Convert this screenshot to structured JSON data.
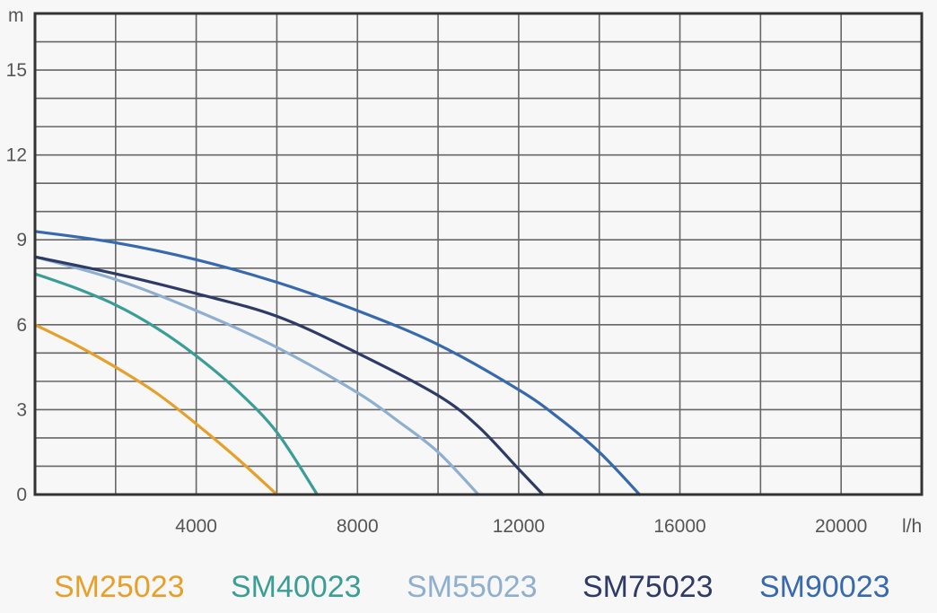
{
  "chart_data": {
    "type": "line",
    "xlabel": "l/h",
    "ylabel": "m",
    "xlim": [
      0,
      22000
    ],
    "ylim": [
      0,
      17
    ],
    "xticks": [
      4000,
      8000,
      12000,
      16000,
      20000
    ],
    "xtick_labels": [
      "4000",
      "8000",
      "12000",
      "16000",
      "20000"
    ],
    "yticks": [
      0,
      3,
      6,
      9,
      12,
      15
    ],
    "ytick_labels": [
      "0",
      "3",
      "6",
      "9",
      "12",
      "15"
    ],
    "grid": true,
    "legend": "bottom",
    "series": [
      {
        "name": "SM25023",
        "color": "#e6a02a",
        "x": [
          0,
          1000,
          2000,
          3000,
          4000,
          5000,
          6000
        ],
        "y": [
          6.0,
          5.3,
          4.5,
          3.6,
          2.5,
          1.3,
          0
        ]
      },
      {
        "name": "SM40023",
        "color": "#3b9e96",
        "x": [
          0,
          1000,
          2000,
          3000,
          4000,
          5000,
          6000,
          7000
        ],
        "y": [
          7.8,
          7.3,
          6.7,
          5.9,
          4.9,
          3.7,
          2.2,
          0
        ]
      },
      {
        "name": "SM55023",
        "color": "#8eafcf",
        "x": [
          0,
          2000,
          4000,
          6000,
          8000,
          9000,
          10000,
          11000
        ],
        "y": [
          8.4,
          7.6,
          6.5,
          5.2,
          3.6,
          2.6,
          1.5,
          0
        ]
      },
      {
        "name": "SM75023",
        "color": "#2e3b66",
        "x": [
          0,
          2000,
          4000,
          6000,
          8000,
          10000,
          11000,
          12000,
          12600
        ],
        "y": [
          8.4,
          7.8,
          7.1,
          6.3,
          5.0,
          3.5,
          2.4,
          0.9,
          0
        ]
      },
      {
        "name": "SM90023",
        "color": "#3669ad",
        "x": [
          0,
          2000,
          4000,
          6000,
          8000,
          10000,
          12000,
          13000,
          14000,
          15000
        ],
        "y": [
          9.3,
          8.9,
          8.3,
          7.5,
          6.5,
          5.3,
          3.7,
          2.7,
          1.5,
          0
        ]
      }
    ]
  }
}
